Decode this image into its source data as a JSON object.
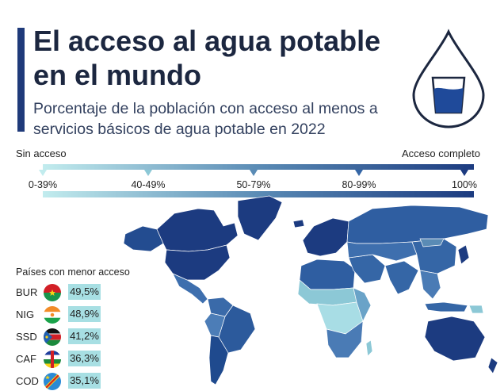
{
  "header": {
    "title": "El acceso al agua potable en el mundo",
    "subtitle": "Porcentaje de la población con acceso al menos a servicios básicos de agua potable en 2022"
  },
  "legend": {
    "left_label": "Sin acceso",
    "right_label": "Acceso completo",
    "bins": [
      {
        "label": "0-39%",
        "color": "#c2ecee"
      },
      {
        "label": "40-49%",
        "color": "#8cc8d6"
      },
      {
        "label": "50-79%",
        "color": "#5a8bb5"
      },
      {
        "label": "80-99%",
        "color": "#3566a6"
      },
      {
        "label": "100%",
        "color": "#1c3b80"
      }
    ]
  },
  "lowest_panel": {
    "title": "Países con menor acceso",
    "rows": [
      {
        "code": "BUR",
        "value": "49,5%"
      },
      {
        "code": "NIG",
        "value": "48,9%"
      },
      {
        "code": "SSD",
        "value": "41,2%"
      },
      {
        "code": "CAF",
        "value": "36,3%"
      },
      {
        "code": "COD",
        "value": "35,1%"
      }
    ]
  },
  "colors": {
    "accent": "#1f3a7a",
    "ocean": "#ffffff",
    "highlight": "#a7dfe3"
  },
  "icons": [
    "water-drop-glass-icon",
    "flag-burkina-faso-icon",
    "flag-niger-icon",
    "flag-south-sudan-icon",
    "flag-central-african-republic-icon",
    "flag-congo-dr-icon"
  ]
}
